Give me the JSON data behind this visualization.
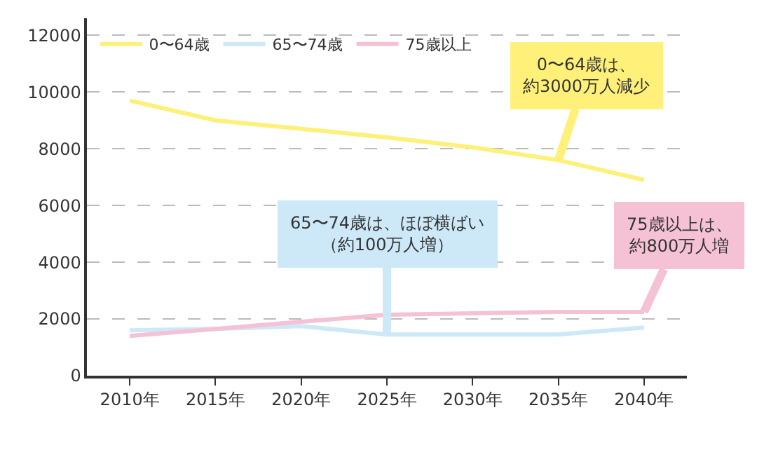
{
  "chart_data": {
    "type": "line",
    "categories": [
      "2010年",
      "2015年",
      "2020年",
      "2025年",
      "2030年",
      "2035年",
      "2040年"
    ],
    "series": [
      {
        "name": "0〜64歳",
        "color": "#fff07a",
        "values": [
          9700,
          9000,
          8700,
          8400,
          8050,
          7600,
          6900
        ]
      },
      {
        "name": "65〜74歳",
        "color": "#cde8f7",
        "values": [
          1600,
          1650,
          1750,
          1450,
          1450,
          1450,
          1700
        ]
      },
      {
        "name": "75歳以上",
        "color": "#f5c2d5",
        "values": [
          1400,
          1650,
          1900,
          2150,
          2200,
          2250,
          2250
        ]
      }
    ],
    "ylim": [
      0,
      12600
    ],
    "yticks": [
      0,
      2000,
      4000,
      6000,
      8000,
      10000,
      12000
    ],
    "grid": "y",
    "legend": "top left",
    "line_style": "solid",
    "annotations": [
      {
        "text": "0〜64歳は、約3000万人減少",
        "x": "2035年",
        "y": 7600
      },
      {
        "text": "65〜74歳は、ほぼ横ばい（約100万人増）",
        "x": "2025年",
        "y": 1450
      },
      {
        "text": "75歳以上は、約800万人増",
        "x": "2040年",
        "y": 2250
      }
    ]
  }
}
